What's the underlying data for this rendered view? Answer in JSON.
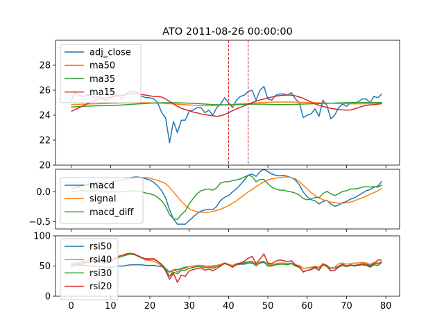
{
  "chart_data": {
    "title": "ATO 2011-08-26 00:00:00",
    "colors": {
      "blue": "#1f77b4",
      "orange": "#ff7f0e",
      "green": "#2ca02c",
      "red": "#d62728"
    },
    "x_ticks": [
      0,
      10,
      20,
      30,
      40,
      50,
      60,
      70,
      80
    ],
    "xlim": [
      -4,
      83.5
    ],
    "panels": [
      {
        "type": "line",
        "ylim": [
          20,
          30
        ],
        "y_ticks": [
          20,
          22,
          24,
          26,
          28
        ],
        "legend_placement": "upper-left",
        "vlines": [
          40,
          45
        ],
        "series": [
          {
            "name": "adj_close",
            "color": "#1f77b4",
            "values": [
              25.2,
              25.8,
              25.6,
              25.5,
              25.6,
              25.6,
              25.4,
              25.5,
              25.3,
              25.2,
              25.3,
              25.6,
              25.6,
              25.3,
              25.7,
              25.9,
              25.9,
              25.8,
              25.5,
              25.4,
              25.4,
              25.3,
              25.0,
              24.2,
              23.8,
              21.8,
              23.5,
              22.6,
              23.6,
              23.6,
              24.3,
              24.4,
              24.6,
              24.6,
              24.2,
              24.4,
              24.0,
              24.6,
              24.9,
              25.4,
              25.0,
              24.6,
              25.2,
              25.5,
              25.6,
              25.9,
              26.0,
              25.2,
              26.0,
              26.3,
              25.3,
              25.2,
              25.6,
              25.7,
              25.7,
              25.6,
              25.8,
              25.3,
              25.0,
              23.8,
              24.0,
              24.1,
              24.5,
              23.9,
              25.2,
              24.8,
              23.7,
              24.0,
              24.6,
              24.9,
              24.7,
              25.0,
              24.9,
              25.1,
              25.3,
              25.3,
              25.0,
              25.5,
              25.4,
              25.7
            ]
          },
          {
            "name": "ma50",
            "color": "#ff7f0e",
            "values": [
              24.85,
              24.86,
              24.87,
              24.88,
              24.89,
              24.9,
              24.91,
              24.92,
              24.93,
              24.94,
              24.95,
              24.96,
              24.97,
              24.98,
              24.98,
              24.98,
              24.99,
              24.99,
              24.99,
              24.99,
              24.99,
              24.98,
              24.97,
              24.96,
              24.94,
              24.92,
              24.9,
              24.88,
              24.86,
              24.84,
              24.82,
              24.8,
              24.78,
              24.76,
              24.76,
              24.76,
              24.77,
              24.78,
              24.8,
              24.82,
              24.84,
              24.86,
              24.88,
              24.9,
              24.92,
              24.94,
              24.96,
              24.98,
              25.0,
              25.02,
              25.03,
              25.04,
              25.05,
              25.05,
              25.05,
              25.05,
              25.05,
              25.05,
              25.04,
              25.03,
              25.02,
              25.01,
              25.0,
              24.99,
              24.98,
              24.97,
              24.96,
              24.95,
              24.94,
              24.93,
              24.92,
              24.92,
              24.91,
              24.91,
              24.91,
              24.91,
              24.92,
              24.93,
              24.94,
              24.95
            ]
          },
          {
            "name": "ma35",
            "color": "#2ca02c",
            "values": [
              24.65,
              24.67,
              24.69,
              24.71,
              24.72,
              24.73,
              24.74,
              24.75,
              24.76,
              24.77,
              24.78,
              24.79,
              24.8,
              24.82,
              24.84,
              24.86,
              24.88,
              24.9,
              24.92,
              24.94,
              24.96,
              24.97,
              24.98,
              24.99,
              25.0,
              25.0,
              25.0,
              24.99,
              24.98,
              24.97,
              24.96,
              24.95,
              24.93,
              24.91,
              24.89,
              24.87,
              24.85,
              24.84,
              24.83,
              24.83,
              24.83,
              24.83,
              24.84,
              24.85,
              24.86,
              24.87,
              24.88,
              24.88,
              24.88,
              24.88,
              24.87,
              24.86,
              24.85,
              24.85,
              24.85,
              24.85,
              24.86,
              24.87,
              24.88,
              24.89,
              24.9,
              24.91,
              24.92,
              24.93,
              24.94,
              24.95,
              24.96,
              24.97,
              24.98,
              24.99,
              25.0,
              25.01,
              25.02,
              25.02,
              25.02,
              25.02,
              25.02,
              25.02,
              25.02,
              25.02
            ]
          },
          {
            "name": "ma15",
            "color": "#d62728",
            "values": [
              24.3,
              24.45,
              24.6,
              24.75,
              24.9,
              25.05,
              25.2,
              25.3,
              25.35,
              25.4,
              25.45,
              25.5,
              25.55,
              25.6,
              25.65,
              25.7,
              25.72,
              25.7,
              25.65,
              25.6,
              25.55,
              25.5,
              25.5,
              25.45,
              25.3,
              25.1,
              24.9,
              24.7,
              24.55,
              24.45,
              24.35,
              24.25,
              24.18,
              24.1,
              24.05,
              24.0,
              23.95,
              23.9,
              23.95,
              24.05,
              24.2,
              24.35,
              24.5,
              24.62,
              24.75,
              24.88,
              25.0,
              25.12,
              25.22,
              25.3,
              25.38,
              25.45,
              25.52,
              25.57,
              25.6,
              25.62,
              25.6,
              25.55,
              25.45,
              25.35,
              25.2,
              25.05,
              24.9,
              24.8,
              24.7,
              24.62,
              24.55,
              24.5,
              24.45,
              24.42,
              24.4,
              24.42,
              24.5,
              24.6,
              24.7,
              24.78,
              24.82,
              24.85,
              24.88,
              24.92
            ]
          }
        ]
      },
      {
        "type": "line",
        "ylim": [
          -0.62,
          0.38
        ],
        "y_ticks": [
          -0.5,
          0.0
        ],
        "y_tick_labels": [
          "−0.5",
          "0.0"
        ],
        "legend_placement": "upper-left",
        "series": [
          {
            "name": "macd",
            "color": "#1f77b4",
            "values": [
              0.05,
              0.08,
              0.1,
              0.12,
              0.13,
              0.14,
              0.15,
              0.16,
              0.16,
              0.16,
              0.17,
              0.18,
              0.19,
              0.2,
              0.22,
              0.24,
              0.25,
              0.25,
              0.24,
              0.22,
              0.2,
              0.16,
              0.1,
              0.02,
              -0.1,
              -0.3,
              -0.45,
              -0.54,
              -0.54,
              -0.54,
              -0.48,
              -0.42,
              -0.36,
              -0.32,
              -0.3,
              -0.29,
              -0.3,
              -0.24,
              -0.14,
              -0.09,
              -0.06,
              0.0,
              0.05,
              0.12,
              0.2,
              0.28,
              0.3,
              0.26,
              0.34,
              0.38,
              0.34,
              0.3,
              0.28,
              0.27,
              0.28,
              0.26,
              0.24,
              0.2,
              0.12,
              0.0,
              -0.08,
              -0.13,
              -0.15,
              -0.2,
              -0.16,
              -0.14,
              -0.2,
              -0.24,
              -0.22,
              -0.18,
              -0.16,
              -0.12,
              -0.1,
              -0.06,
              -0.02,
              0.02,
              0.04,
              0.08,
              0.1,
              0.18
            ]
          },
          {
            "name": "signal",
            "color": "#ff7f0e",
            "values": [
              0.05,
              0.07,
              0.08,
              0.1,
              0.11,
              0.12,
              0.13,
              0.14,
              0.15,
              0.16,
              0.17,
              0.18,
              0.19,
              0.2,
              0.21,
              0.22,
              0.23,
              0.24,
              0.24,
              0.24,
              0.23,
              0.21,
              0.19,
              0.17,
              0.14,
              0.08,
              0.0,
              -0.08,
              -0.16,
              -0.22,
              -0.28,
              -0.31,
              -0.33,
              -0.34,
              -0.34,
              -0.34,
              -0.33,
              -0.31,
              -0.29,
              -0.26,
              -0.23,
              -0.19,
              -0.15,
              -0.1,
              -0.05,
              0.0,
              0.04,
              0.09,
              0.13,
              0.17,
              0.2,
              0.22,
              0.23,
              0.24,
              0.25,
              0.25,
              0.24,
              0.22,
              0.17,
              0.11,
              0.05,
              -0.01,
              -0.06,
              -0.1,
              -0.13,
              -0.15,
              -0.17,
              -0.18,
              -0.19,
              -0.19,
              -0.18,
              -0.17,
              -0.15,
              -0.12,
              -0.1,
              -0.07,
              -0.04,
              -0.01,
              0.02,
              0.06
            ]
          },
          {
            "name": "macd_diff",
            "color": "#2ca02c",
            "values": [
              0.0,
              0.01,
              0.02,
              0.02,
              0.02,
              0.02,
              0.02,
              0.02,
              0.01,
              0.0,
              0.0,
              0.0,
              0.0,
              0.0,
              0.01,
              0.02,
              0.02,
              0.01,
              0.0,
              -0.02,
              -0.03,
              -0.05,
              -0.09,
              -0.15,
              -0.24,
              -0.38,
              -0.45,
              -0.46,
              -0.38,
              -0.32,
              -0.2,
              -0.11,
              -0.03,
              0.02,
              0.04,
              0.05,
              0.03,
              0.07,
              0.15,
              0.17,
              0.17,
              0.19,
              0.2,
              0.22,
              0.25,
              0.28,
              0.26,
              0.17,
              0.21,
              0.21,
              0.14,
              0.08,
              0.05,
              0.03,
              0.03,
              0.01,
              0.0,
              -0.02,
              -0.05,
              -0.11,
              -0.13,
              -0.12,
              -0.09,
              -0.1,
              -0.03,
              0.01,
              -0.03,
              -0.06,
              -0.03,
              0.01,
              0.02,
              0.05,
              0.05,
              0.06,
              0.08,
              0.09,
              0.08,
              0.09,
              0.08,
              0.12
            ]
          }
        ]
      },
      {
        "type": "line",
        "ylim": [
          0,
          100
        ],
        "y_ticks": [
          0,
          50,
          100
        ],
        "legend_placement": "upper-left",
        "series": [
          {
            "name": "rsi50",
            "color": "#1f77b4",
            "values": [
              54,
              53,
              52,
              51,
              51,
              50,
              50,
              49,
              49,
              48,
              48,
              49,
              50,
              50,
              51,
              52,
              52,
              52,
              52,
              51,
              51,
              51,
              50,
              49,
              46,
              40,
              44,
              44,
              46,
              48,
              49,
              50,
              51,
              51,
              50,
              50,
              50,
              51,
              52,
              54,
              52,
              50,
              52,
              53,
              53,
              55,
              55,
              51,
              55,
              56,
              51,
              51,
              53,
              53,
              53,
              53,
              54,
              51,
              50,
              46,
              47,
              47,
              49,
              47,
              52,
              50,
              46,
              47,
              49,
              51,
              50,
              51,
              51,
              52,
              53,
              53,
              51,
              54,
              54,
              56
            ]
          },
          {
            "name": "rsi40",
            "color": "#ff7f0e",
            "values": [
              50,
              55,
              56,
              58,
              60,
              60,
              59,
              59,
              58,
              58,
              59,
              63,
              66,
              68,
              70,
              71,
              70,
              67,
              63,
              60,
              59,
              58,
              55,
              50,
              44,
              33,
              44,
              40,
              45,
              46,
              49,
              50,
              51,
              51,
              49,
              50,
              48,
              51,
              53,
              55,
              53,
              51,
              54,
              55,
              56,
              57,
              58,
              53,
              57,
              58,
              53,
              52,
              54,
              55,
              55,
              54,
              55,
              52,
              51,
              46,
              47,
              48,
              50,
              48,
              53,
              51,
              47,
              48,
              54,
              55,
              53,
              54,
              55,
              55,
              56,
              55,
              53,
              56,
              55,
              58
            ]
          },
          {
            "name": "rsi30",
            "color": "#2ca02c",
            "values": [
              52,
              55,
              54,
              56,
              57,
              58,
              58,
              57,
              57,
              56,
              57,
              61,
              64,
              66,
              68,
              70,
              69,
              66,
              63,
              61,
              61,
              61,
              58,
              53,
              46,
              33,
              40,
              37,
              43,
              43,
              46,
              48,
              49,
              49,
              47,
              48,
              46,
              49,
              51,
              54,
              52,
              49,
              52,
              54,
              55,
              57,
              57,
              50,
              56,
              57,
              50,
              50,
              52,
              53,
              53,
              52,
              54,
              50,
              48,
              41,
              43,
              44,
              47,
              43,
              52,
              49,
              42,
              43,
              48,
              51,
              49,
              51,
              50,
              51,
              52,
              51,
              48,
              52,
              51,
              56
            ]
          },
          {
            "name": "rsi20",
            "color": "#d62728",
            "values": [
              48,
              52,
              51,
              54,
              56,
              58,
              58,
              57,
              57,
              55,
              57,
              62,
              66,
              68,
              70,
              71,
              70,
              67,
              64,
              62,
              62,
              62,
              58,
              52,
              42,
              28,
              38,
              23,
              35,
              33,
              42,
              44,
              46,
              47,
              43,
              45,
              42,
              46,
              50,
              55,
              52,
              48,
              53,
              55,
              58,
              63,
              66,
              54,
              62,
              70,
              55,
              54,
              58,
              60,
              59,
              57,
              59,
              52,
              49,
              40,
              43,
              44,
              48,
              43,
              54,
              51,
              42,
              43,
              50,
              53,
              50,
              52,
              51,
              52,
              54,
              53,
              49,
              54,
              60,
              60
            ]
          }
        ]
      }
    ]
  }
}
